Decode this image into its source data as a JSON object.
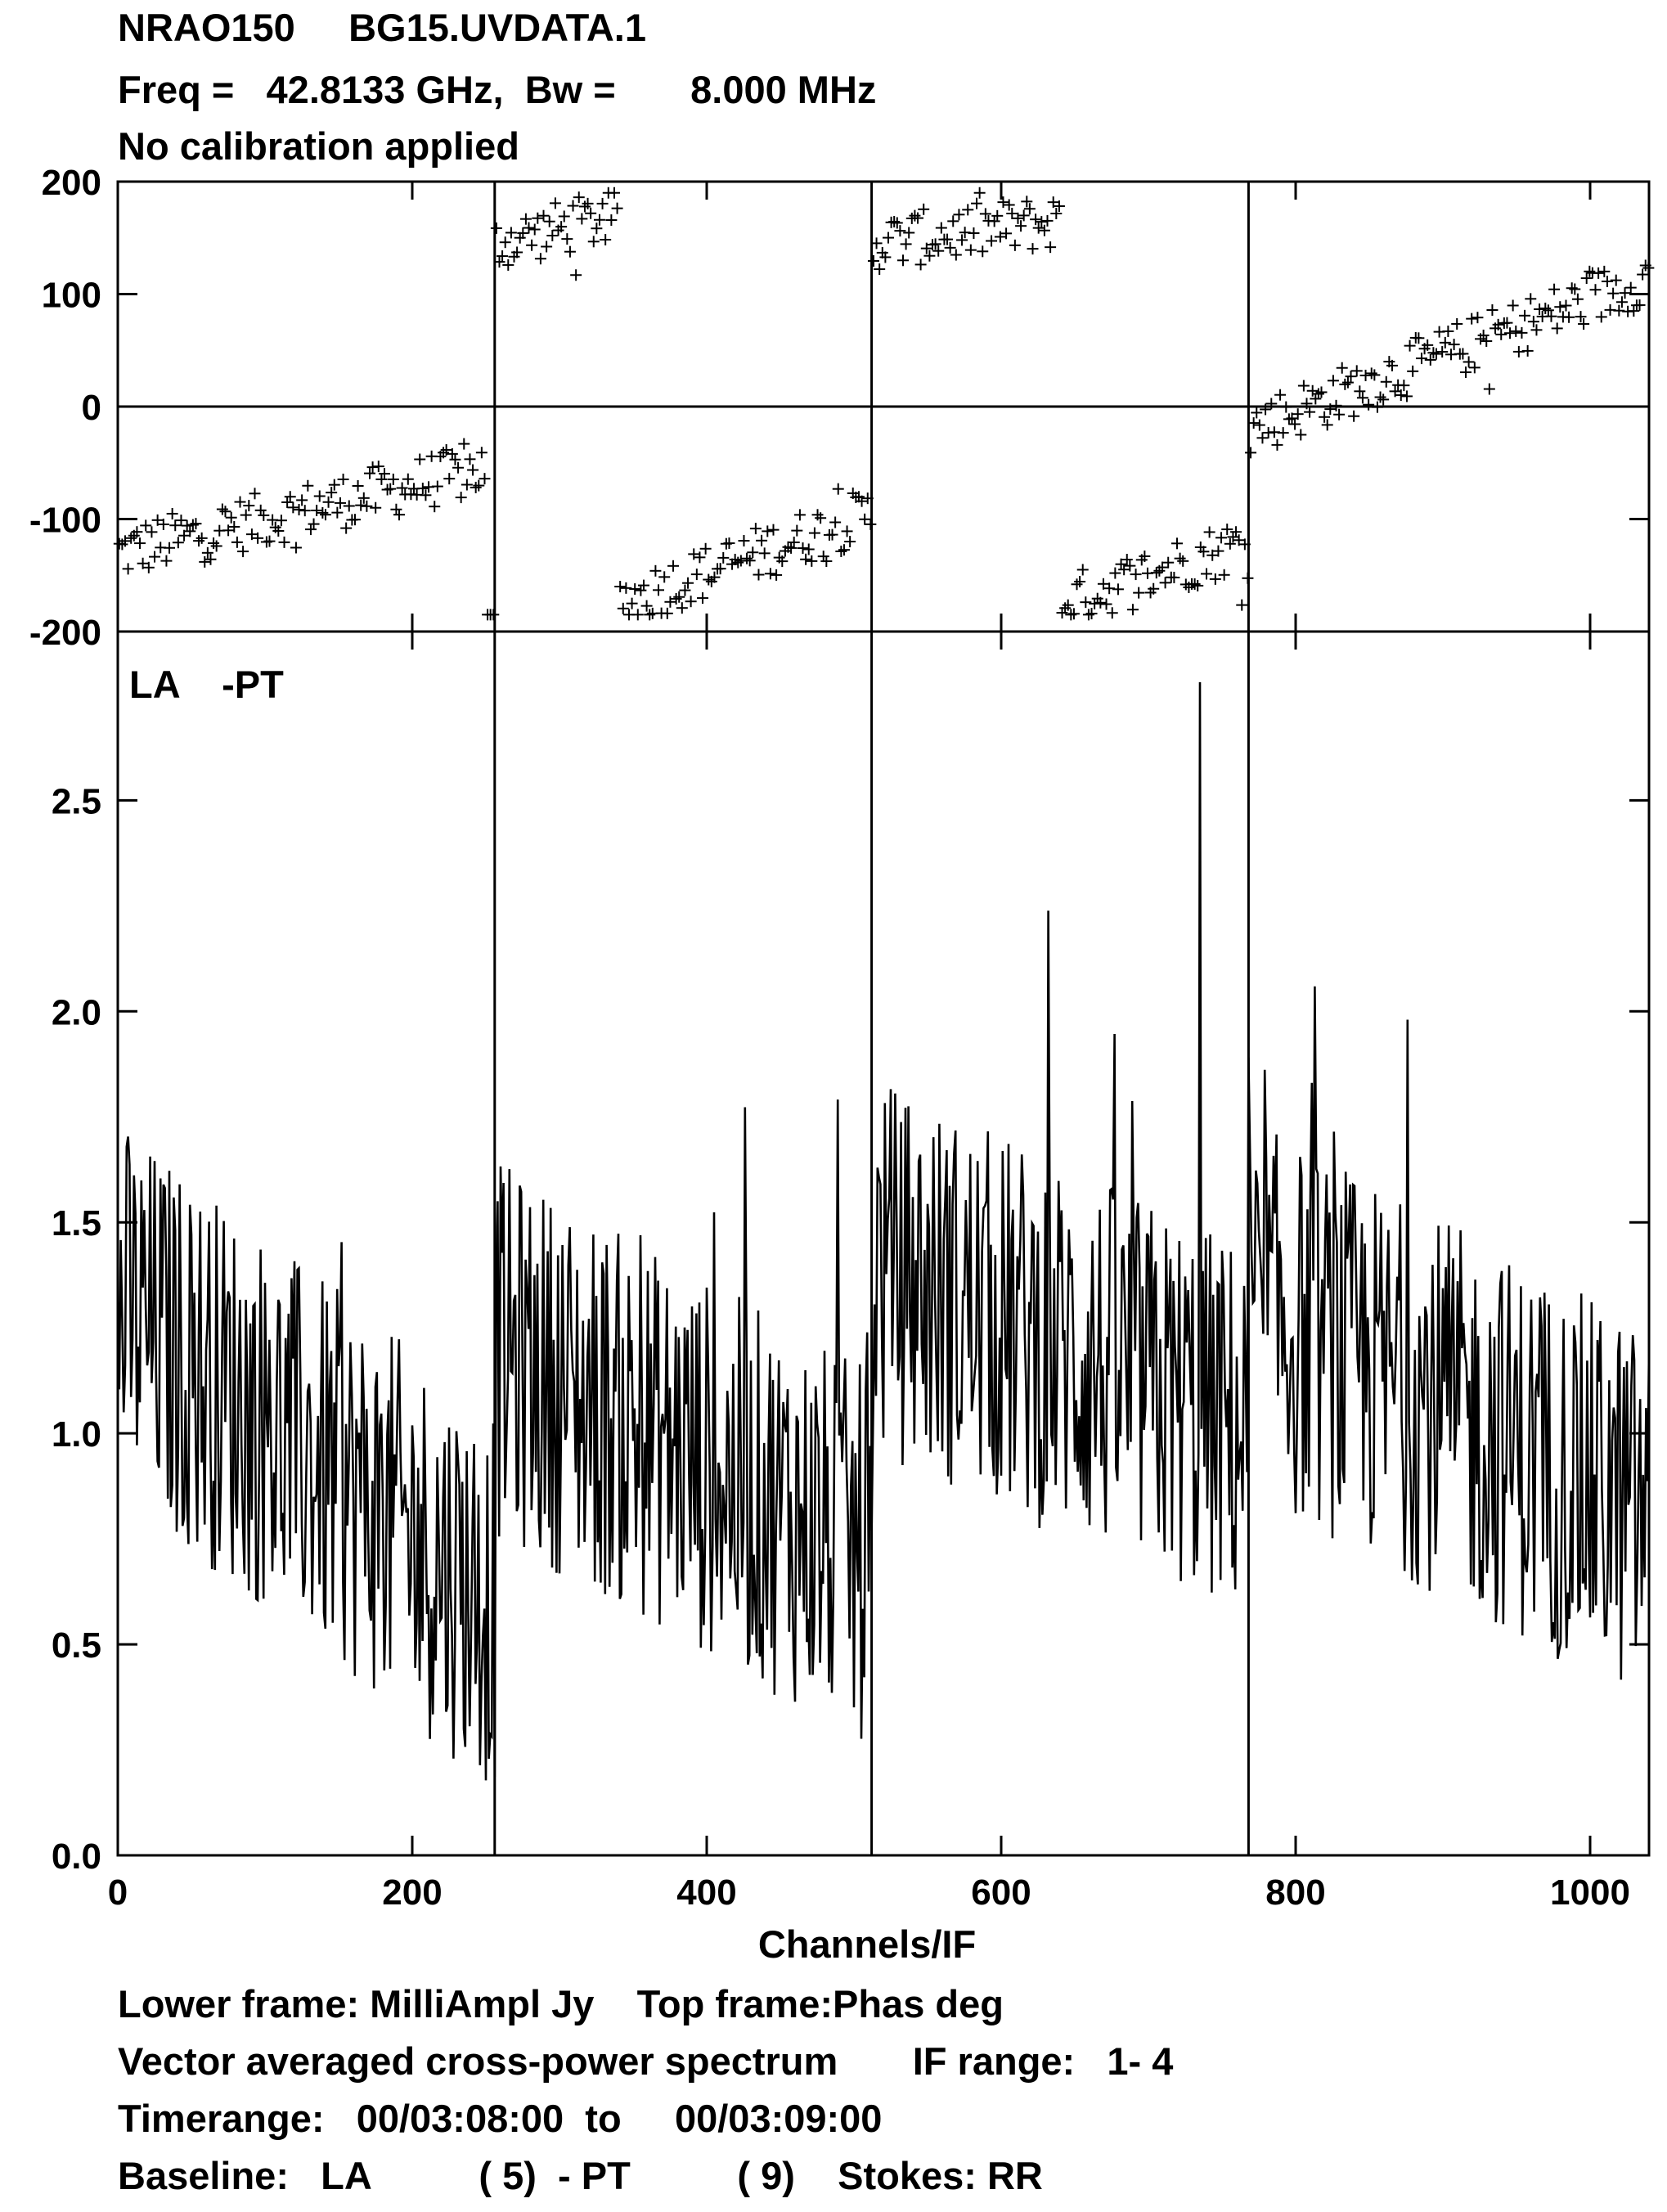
{
  "header": {
    "line1_source": "NRAO150",
    "line1_file": "BG15.UVDATA.1",
    "line2_freq_label": "Freq =",
    "line2_freq_value": "42.8133 GHz,",
    "line2_bw_label": "Bw =",
    "line2_bw_value": "8.000 MHz",
    "line3": "No calibration applied"
  },
  "footer": {
    "line1_lower": "Lower frame: MilliAmpl Jy",
    "line1_top": "Top frame:Phas deg",
    "line2_desc": "Vector averaged cross-power spectrum",
    "line2_if": "IF range:   1- 4",
    "line3_label": "Timerange:",
    "line3_start": "00/03:08:00",
    "line3_to": "to",
    "line3_end": "00/03:09:00",
    "line4_label": "Baseline:",
    "line4_ant1": "LA",
    "line4_ant1_num": "( 5)",
    "line4_dash": "- PT",
    "line4_ant2_num": "( 9)",
    "line4_stokes": "Stokes: RR"
  },
  "chart_data": {
    "type": "multi-panel spectrum",
    "xlabel": "Channels/IF",
    "xlim": [
      0,
      1040
    ],
    "x_ticks": [
      0,
      200,
      400,
      600,
      800,
      1000
    ],
    "if_boundaries": [
      256,
      512,
      768
    ],
    "top_panel": {
      "type": "scatter",
      "quantity": "Phas deg",
      "ylim": [
        -200,
        200
      ],
      "y_ticks": [
        "200",
        "100",
        "0",
        "-100",
        "-200"
      ],
      "y_tick_values": [
        200,
        100,
        0,
        -100,
        -200
      ],
      "points_per_if": 128,
      "trend_segments": [
        {
          "x": [
            0,
            250
          ],
          "y": [
            -130,
            -55
          ],
          "wrap": false
        },
        {
          "x": [
            256,
            340
          ],
          "y": [
            145,
            170
          ],
          "wrap": false
        },
        {
          "x": [
            340,
            512
          ],
          "y": [
            -175,
            -95
          ],
          "wrap": false
        },
        {
          "x": [
            512,
            640
          ],
          "y": [
            145,
            165
          ],
          "wrap": false
        },
        {
          "x": [
            640,
            768
          ],
          "y": [
            -175,
            -120
          ],
          "wrap": false
        },
        {
          "x": [
            768,
            1040
          ],
          "y": [
            -20,
            115
          ],
          "wrap": false
        }
      ]
    },
    "bottom_panel": {
      "type": "line",
      "quantity": "MilliAmpl Jy",
      "label": "LA    -PT",
      "ylim": [
        0.0,
        2.9
      ],
      "y_ticks": [
        "2.5",
        "2.0",
        "1.5",
        "1.0",
        "0.5",
        "0.0"
      ],
      "y_tick_values": [
        2.5,
        2.0,
        1.5,
        1.0,
        0.5,
        0.0
      ],
      "baseline_levels_per_if": [
        {
          "x": [
            0,
            256
          ],
          "start": 1.3,
          "end": 0.6
        },
        {
          "x": [
            256,
            512
          ],
          "start": 1.2,
          "end": 0.7
        },
        {
          "x": [
            512,
            768
          ],
          "start": 1.4,
          "end": 1.0
        },
        {
          "x": [
            768,
            1040
          ],
          "start": 1.3,
          "end": 0.8
        }
      ],
      "peak": {
        "x": 735,
        "y": 2.78
      }
    }
  }
}
